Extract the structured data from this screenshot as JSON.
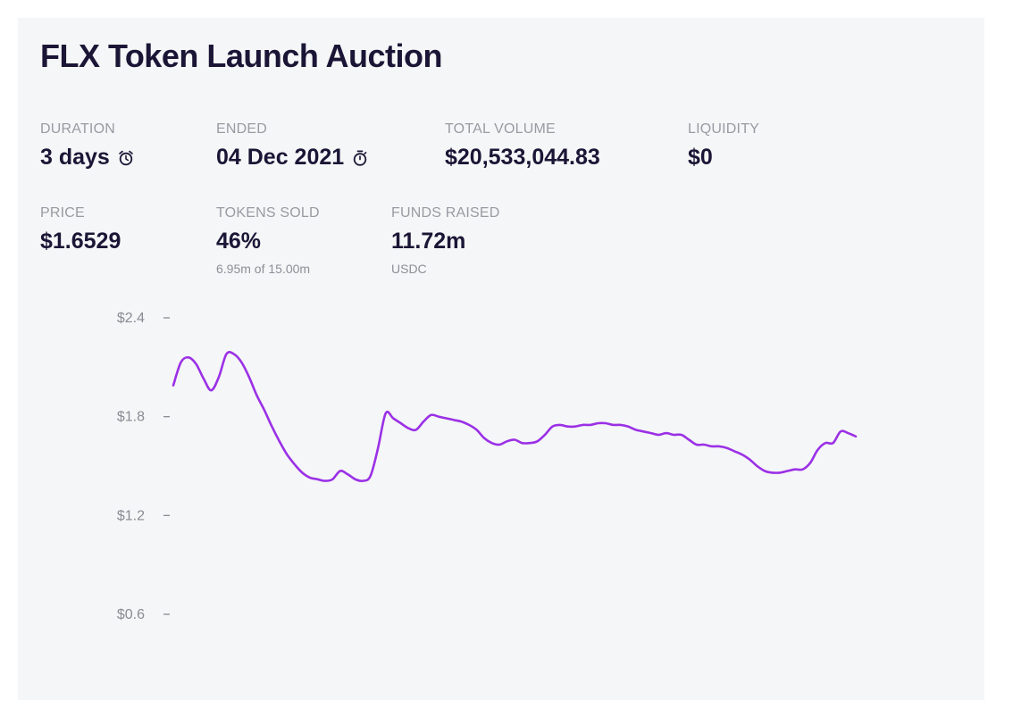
{
  "title": "FLX Token Launch Auction",
  "stats": {
    "duration": {
      "label": "DURATION",
      "value": "3 days",
      "icon": "alarm-clock-icon"
    },
    "ended": {
      "label": "ENDED",
      "value": "04 Dec 2021",
      "icon": "stopwatch-icon"
    },
    "total_volume": {
      "label": "TOTAL VOLUME",
      "value": "$20,533,044.83"
    },
    "liquidity": {
      "label": "LIQUIDITY",
      "value": "$0"
    },
    "price": {
      "label": "PRICE",
      "value": "$1.6529"
    },
    "tokens_sold": {
      "label": "TOKENS SOLD",
      "value": "46%",
      "sub": "6.95m of 15.00m"
    },
    "funds_raised": {
      "label": "FUNDS RAISED",
      "value": "11.72m",
      "sub": "USDC"
    }
  },
  "colors": {
    "line": "#9b30e6",
    "card_background": "#f5f6f7",
    "title": "#1b1536",
    "muted": "#9a9aa3"
  },
  "chart_data": {
    "type": "line",
    "title": "",
    "xlabel": "",
    "ylabel": "",
    "ylim": [
      0.6,
      2.4
    ],
    "y_ticks": [
      2.4,
      1.8,
      1.2,
      0.6
    ],
    "y_tick_labels": [
      "$2.4",
      "$1.8",
      "$1.2",
      "$0.6"
    ],
    "grid": false,
    "legend": "none",
    "series": [
      {
        "values": [
          1.99,
          2.13,
          2.16,
          2.12,
          2.03,
          1.96,
          2.04,
          2.18,
          2.18,
          2.13,
          2.04,
          1.93,
          1.84,
          1.74,
          1.65,
          1.57,
          1.51,
          1.46,
          1.43,
          1.42,
          1.41,
          1.42,
          1.47,
          1.45,
          1.42,
          1.41,
          1.44,
          1.61,
          1.82,
          1.79,
          1.76,
          1.73,
          1.72,
          1.77,
          1.81,
          1.8,
          1.79,
          1.78,
          1.77,
          1.75,
          1.72,
          1.67,
          1.64,
          1.63,
          1.65,
          1.66,
          1.64,
          1.64,
          1.65,
          1.69,
          1.74,
          1.75,
          1.74,
          1.74,
          1.75,
          1.75,
          1.76,
          1.76,
          1.75,
          1.75,
          1.74,
          1.72,
          1.71,
          1.7,
          1.69,
          1.7,
          1.69,
          1.69,
          1.66,
          1.63,
          1.63,
          1.62,
          1.62,
          1.61,
          1.59,
          1.57,
          1.54,
          1.5,
          1.47,
          1.46,
          1.46,
          1.47,
          1.48,
          1.48,
          1.52,
          1.6,
          1.64,
          1.64,
          1.71,
          1.7,
          1.68
        ]
      }
    ]
  }
}
